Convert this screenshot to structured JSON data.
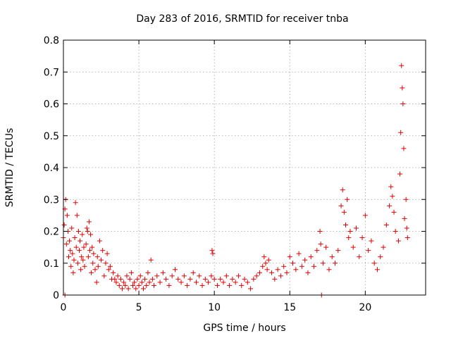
{
  "chart_data": {
    "type": "scatter",
    "title": "Day 283 of 2016, SRMTID for receiver tnba",
    "xlabel": "GPS time / hours",
    "ylabel": "SRMTID / TECUs",
    "xlim": [
      0,
      24
    ],
    "ylim": [
      0,
      0.8
    ],
    "xticks": [
      0,
      5,
      10,
      15,
      20
    ],
    "xtick_labels": [
      "0",
      "5",
      "10",
      "15",
      "20"
    ],
    "yticks": [
      0,
      0.1,
      0.2,
      0.3,
      0.4,
      0.5,
      0.6,
      0.7,
      0.8
    ],
    "ytick_labels": [
      "0",
      "0.1",
      "0.2",
      "0.3",
      "0.4",
      "0.5",
      "0.6",
      "0.7",
      "0.8"
    ],
    "grid": true,
    "marker": "+",
    "series_color": "#e00000",
    "series": [
      {
        "name": "SRMTID",
        "points": [
          [
            0.0,
            0.18
          ],
          [
            0.05,
            0.22
          ],
          [
            0.1,
            0.27
          ],
          [
            0.1,
            0.0
          ],
          [
            0.15,
            0.3
          ],
          [
            0.2,
            0.16
          ],
          [
            0.25,
            0.25
          ],
          [
            0.3,
            0.2
          ],
          [
            0.35,
            0.12
          ],
          [
            0.4,
            0.17
          ],
          [
            0.45,
            0.14
          ],
          [
            0.5,
            0.09
          ],
          [
            0.55,
            0.21
          ],
          [
            0.6,
            0.13
          ],
          [
            0.65,
            0.07
          ],
          [
            0.7,
            0.11
          ],
          [
            0.75,
            0.18
          ],
          [
            0.8,
            0.29
          ],
          [
            0.85,
            0.15
          ],
          [
            0.9,
            0.25
          ],
          [
            0.95,
            0.1
          ],
          [
            1.0,
            0.2
          ],
          [
            1.05,
            0.14
          ],
          [
            1.1,
            0.17
          ],
          [
            1.15,
            0.08
          ],
          [
            1.2,
            0.12
          ],
          [
            1.25,
            0.19
          ],
          [
            1.3,
            0.11
          ],
          [
            1.35,
            0.15
          ],
          [
            1.4,
            0.09
          ],
          [
            1.5,
            0.16
          ],
          [
            1.55,
            0.21
          ],
          [
            1.6,
            0.2
          ],
          [
            1.65,
            0.12
          ],
          [
            1.7,
            0.23
          ],
          [
            1.75,
            0.14
          ],
          [
            1.8,
            0.19
          ],
          [
            1.85,
            0.07
          ],
          [
            1.9,
            0.15
          ],
          [
            1.95,
            0.1
          ],
          [
            2.0,
            0.13
          ],
          [
            2.1,
            0.08
          ],
          [
            2.2,
            0.04
          ],
          [
            2.25,
            0.12
          ],
          [
            2.3,
            0.09
          ],
          [
            2.4,
            0.17
          ],
          [
            2.5,
            0.11
          ],
          [
            2.6,
            0.14
          ],
          [
            2.7,
            0.06
          ],
          [
            2.8,
            0.1
          ],
          [
            2.9,
            0.13
          ],
          [
            3.0,
            0.08
          ],
          [
            3.1,
            0.09
          ],
          [
            3.2,
            0.05
          ],
          [
            3.3,
            0.07
          ],
          [
            3.4,
            0.05
          ],
          [
            3.5,
            0.04
          ],
          [
            3.6,
            0.06
          ],
          [
            3.7,
            0.03
          ],
          [
            3.8,
            0.05
          ],
          [
            3.9,
            0.02
          ],
          [
            4.0,
            0.04
          ],
          [
            4.1,
            0.03
          ],
          [
            4.2,
            0.06
          ],
          [
            4.3,
            0.02
          ],
          [
            4.4,
            0.05
          ],
          [
            4.5,
            0.07
          ],
          [
            4.6,
            0.03
          ],
          [
            4.7,
            0.04
          ],
          [
            4.8,
            0.02
          ],
          [
            4.9,
            0.05
          ],
          [
            5.0,
            0.03
          ],
          [
            5.1,
            0.06
          ],
          [
            5.2,
            0.04
          ],
          [
            5.3,
            0.02
          ],
          [
            5.4,
            0.05
          ],
          [
            5.5,
            0.03
          ],
          [
            5.6,
            0.07
          ],
          [
            5.7,
            0.04
          ],
          [
            5.8,
            0.11
          ],
          [
            5.9,
            0.05
          ],
          [
            6.0,
            0.03
          ],
          [
            6.2,
            0.06
          ],
          [
            6.4,
            0.04
          ],
          [
            6.6,
            0.07
          ],
          [
            6.8,
            0.05
          ],
          [
            7.0,
            0.03
          ],
          [
            7.2,
            0.06
          ],
          [
            7.4,
            0.08
          ],
          [
            7.6,
            0.05
          ],
          [
            7.8,
            0.04
          ],
          [
            8.0,
            0.06
          ],
          [
            8.2,
            0.03
          ],
          [
            8.4,
            0.05
          ],
          [
            8.6,
            0.07
          ],
          [
            8.8,
            0.04
          ],
          [
            9.0,
            0.06
          ],
          [
            9.2,
            0.03
          ],
          [
            9.4,
            0.05
          ],
          [
            9.6,
            0.04
          ],
          [
            9.8,
            0.06
          ],
          [
            9.85,
            0.14
          ],
          [
            9.9,
            0.13
          ],
          [
            10.0,
            0.05
          ],
          [
            10.2,
            0.03
          ],
          [
            10.4,
            0.05
          ],
          [
            10.6,
            0.04
          ],
          [
            10.8,
            0.06
          ],
          [
            11.0,
            0.03
          ],
          [
            11.2,
            0.05
          ],
          [
            11.4,
            0.04
          ],
          [
            11.6,
            0.06
          ],
          [
            11.8,
            0.03
          ],
          [
            12.0,
            0.05
          ],
          [
            12.2,
            0.04
          ],
          [
            12.4,
            0.02
          ],
          [
            12.6,
            0.05
          ],
          [
            12.8,
            0.06
          ],
          [
            13.0,
            0.07
          ],
          [
            13.2,
            0.09
          ],
          [
            13.3,
            0.12
          ],
          [
            13.4,
            0.1
          ],
          [
            13.5,
            0.08
          ],
          [
            13.6,
            0.11
          ],
          [
            13.8,
            0.07
          ],
          [
            14.0,
            0.05
          ],
          [
            14.2,
            0.08
          ],
          [
            14.4,
            0.06
          ],
          [
            14.6,
            0.09
          ],
          [
            14.8,
            0.07
          ],
          [
            15.0,
            0.12
          ],
          [
            15.2,
            0.1
          ],
          [
            15.4,
            0.08
          ],
          [
            15.6,
            0.13
          ],
          [
            15.8,
            0.09
          ],
          [
            16.0,
            0.11
          ],
          [
            16.2,
            0.07
          ],
          [
            16.4,
            0.12
          ],
          [
            16.6,
            0.09
          ],
          [
            16.8,
            0.14
          ],
          [
            17.0,
            0.2
          ],
          [
            17.05,
            0.16
          ],
          [
            17.1,
            0.0
          ],
          [
            17.2,
            0.1
          ],
          [
            17.4,
            0.15
          ],
          [
            17.6,
            0.08
          ],
          [
            17.8,
            0.12
          ],
          [
            18.0,
            0.1
          ],
          [
            18.2,
            0.14
          ],
          [
            18.4,
            0.28
          ],
          [
            18.5,
            0.33
          ],
          [
            18.6,
            0.26
          ],
          [
            18.7,
            0.22
          ],
          [
            18.8,
            0.3
          ],
          [
            18.9,
            0.18
          ],
          [
            19.0,
            0.2
          ],
          [
            19.2,
            0.15
          ],
          [
            19.4,
            0.21
          ],
          [
            19.6,
            0.12
          ],
          [
            19.8,
            0.18
          ],
          [
            20.0,
            0.25
          ],
          [
            20.2,
            0.14
          ],
          [
            20.4,
            0.17
          ],
          [
            20.6,
            0.1
          ],
          [
            20.8,
            0.08
          ],
          [
            21.0,
            0.12
          ],
          [
            21.2,
            0.15
          ],
          [
            21.4,
            0.22
          ],
          [
            21.6,
            0.28
          ],
          [
            21.7,
            0.34
          ],
          [
            21.8,
            0.31
          ],
          [
            21.9,
            0.26
          ],
          [
            22.0,
            0.2
          ],
          [
            22.2,
            0.17
          ],
          [
            22.3,
            0.38
          ],
          [
            22.35,
            0.51
          ],
          [
            22.4,
            0.72
          ],
          [
            22.45,
            0.65
          ],
          [
            22.5,
            0.6
          ],
          [
            22.55,
            0.46
          ],
          [
            22.6,
            0.24
          ],
          [
            22.7,
            0.3
          ],
          [
            22.75,
            0.21
          ],
          [
            22.8,
            0.18
          ]
        ]
      }
    ]
  }
}
